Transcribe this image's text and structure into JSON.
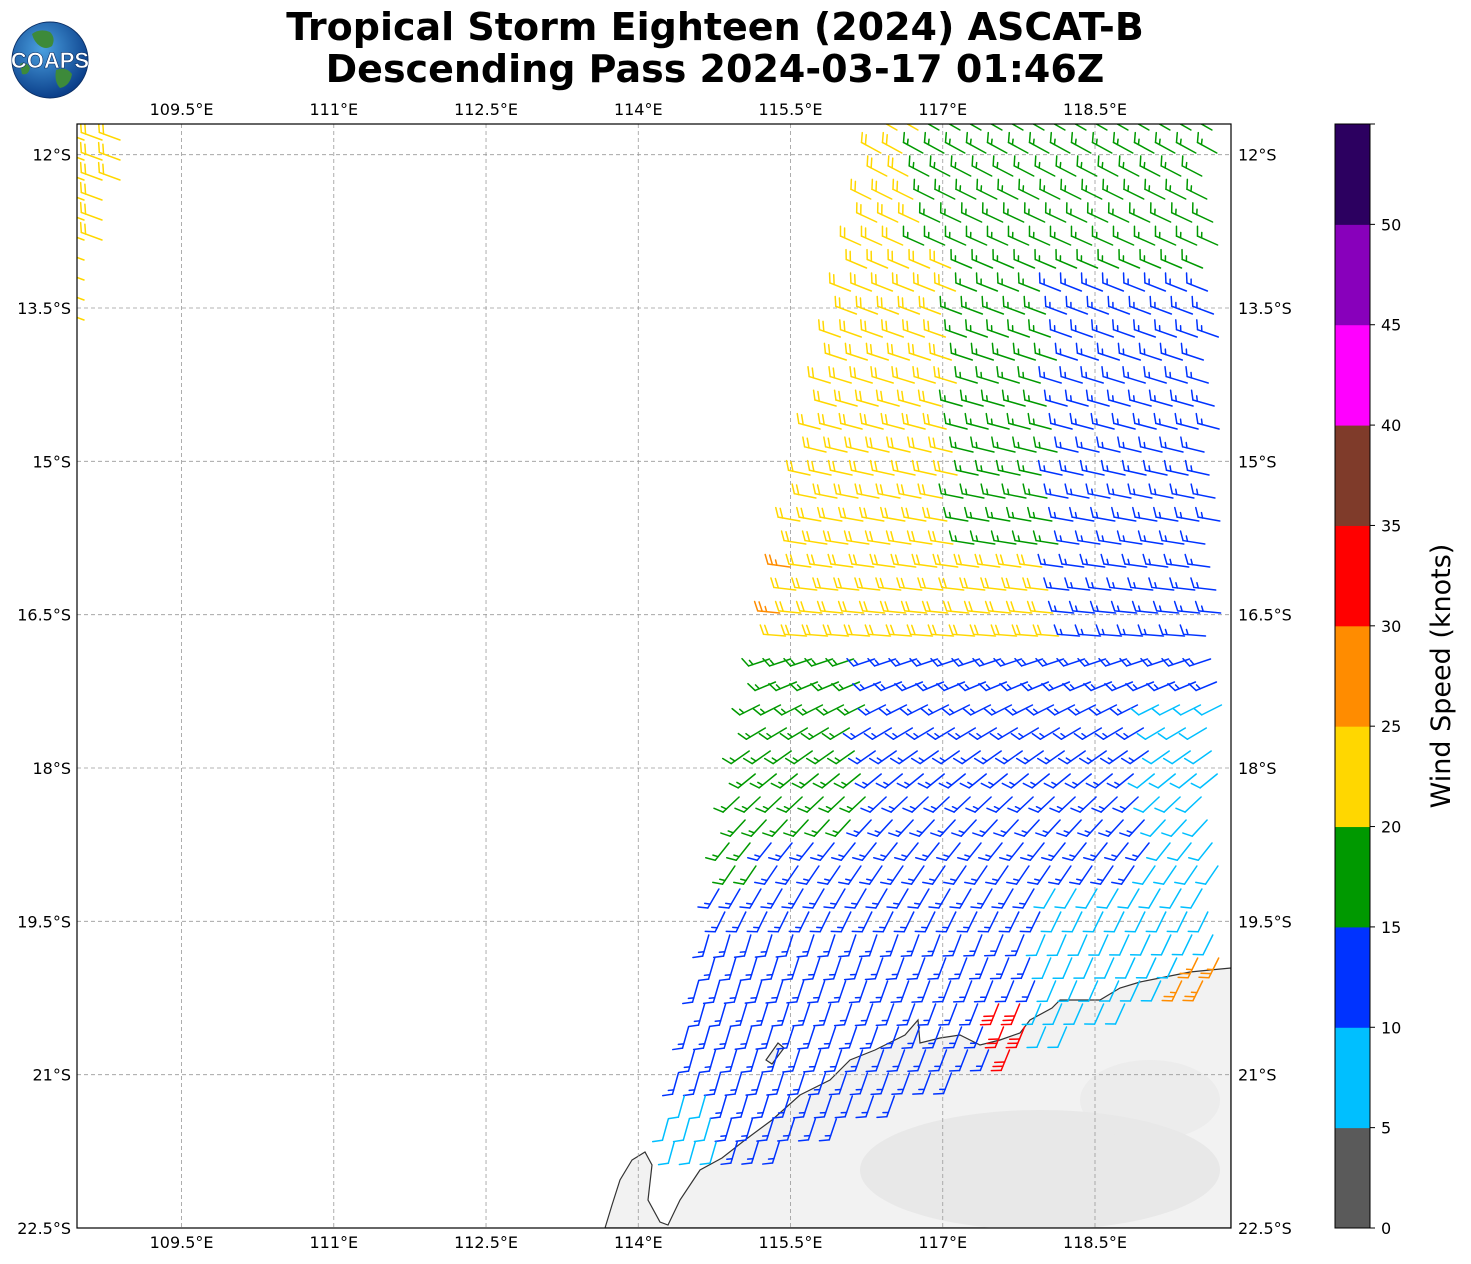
{
  "title_line1": "Tropical Storm Eighteen (2024) ASCAT-B",
  "title_line2": "Descending Pass 2024-03-17 01:46Z",
  "logo_text": "COAPS",
  "map": {
    "lon_range": [
      108.47,
      119.84
    ],
    "lat_range": [
      -22.5,
      -11.7
    ],
    "lon_ticks": [
      "109.5°E",
      "111°E",
      "112.5°E",
      "114°E",
      "115.5°E",
      "117°E",
      "118.5°E"
    ],
    "lon_tick_values": [
      109.5,
      111,
      112.5,
      114,
      115.5,
      117,
      118.5
    ],
    "lat_ticks": [
      "12°S",
      "13.5°S",
      "15°S",
      "16.5°S",
      "18°S",
      "19.5°S",
      "21°S",
      "22.5°S"
    ],
    "lat_tick_values": [
      -12,
      -13.5,
      -15,
      -16.5,
      -18,
      -19.5,
      -21,
      -22.5
    ],
    "land_color": "#f0f0f0",
    "coast_color": "#333333",
    "grid": true
  },
  "colorbar": {
    "label": "Wind Speed (knots)",
    "ticks": [
      "0",
      "5",
      "10",
      "15",
      "20",
      "25",
      "30",
      "35",
      "40",
      "45",
      "50"
    ],
    "colors": [
      "#5a5a5a",
      "#00bfff",
      "#0033ff",
      "#009900",
      "#ffd700",
      "#ff8c00",
      "#ff0000",
      "#7f3b2a",
      "#ff00ff",
      "#8800bb",
      "#2c0060"
    ]
  }
}
